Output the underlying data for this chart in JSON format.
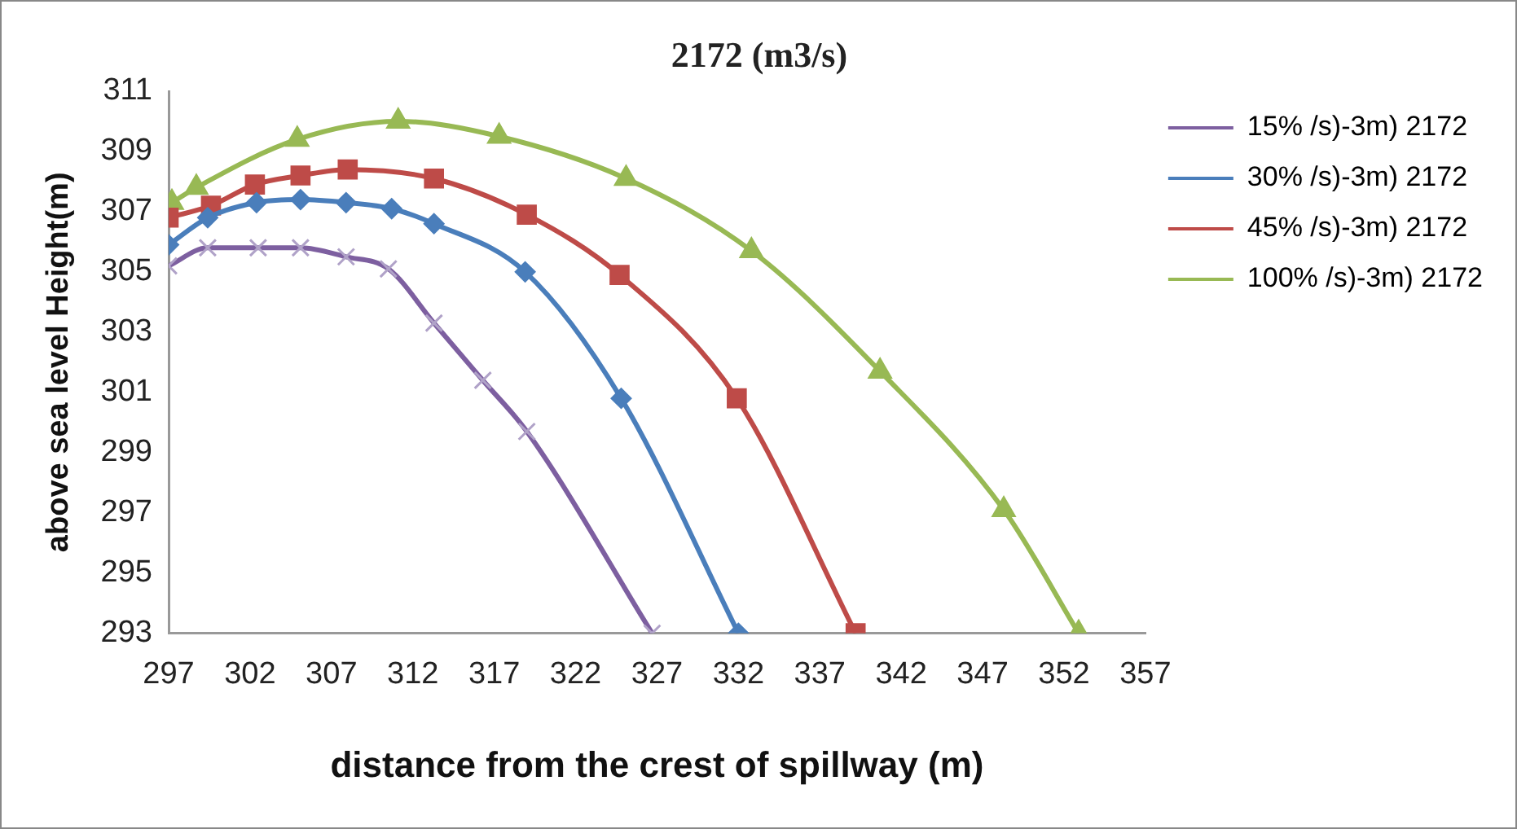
{
  "chart_data": {
    "type": "line",
    "title": "2172   (m3/s)",
    "xlabel": "distance from the crest of spillway (m)",
    "ylabel": "above sea level Height(m)",
    "xlim": [
      297,
      357
    ],
    "xticks": [
      297,
      302,
      307,
      312,
      317,
      322,
      327,
      332,
      337,
      342,
      347,
      352,
      357
    ],
    "ylim": [
      293,
      311
    ],
    "yticks": [
      293,
      295,
      297,
      299,
      301,
      303,
      305,
      307,
      309,
      311
    ],
    "grid": false,
    "legend": "top right",
    "series": [
      {
        "name": "15% /s)-3m) 2172",
        "color": "#7d5fa0",
        "marker": "cross",
        "x": [
          297.0,
          299.4,
          302.5,
          305.1,
          307.9,
          310.5,
          313.3,
          316.3,
          319.0,
          326.7
        ],
        "values": [
          305.2,
          305.8,
          305.8,
          305.8,
          305.5,
          305.1,
          303.3,
          301.4,
          299.7,
          293
        ]
      },
      {
        "name": "30% /s)-3m) 2172",
        "color": "#4a7ebb",
        "marker": "diamond",
        "x": [
          297.0,
          299.4,
          302.4,
          305.1,
          307.9,
          310.7,
          313.3,
          318.9,
          324.8,
          332.0
        ],
        "values": [
          305.9,
          306.8,
          307.3,
          307.4,
          307.3,
          307.1,
          306.6,
          305.0,
          300.8,
          293
        ]
      },
      {
        "name": "45% /s)-3m) 2172",
        "color": "#be4b48",
        "marker": "square",
        "x": [
          297.0,
          299.6,
          302.3,
          305.1,
          308.0,
          313.3,
          319.0,
          324.7,
          331.9,
          339.2
        ],
        "values": [
          306.8,
          307.2,
          307.9,
          308.2,
          308.4,
          308.1,
          306.9,
          304.9,
          300.8,
          293
        ]
      },
      {
        "name": "100% /s)-3m) 2172",
        "color": "#98b954",
        "marker": "triangle",
        "x": [
          297.2,
          298.7,
          304.9,
          311.1,
          317.3,
          325.1,
          332.8,
          340.7,
          348.3,
          352.9
        ],
        "values": [
          307.3,
          307.8,
          309.4,
          310.0,
          309.5,
          308.1,
          305.7,
          301.7,
          297.1,
          293
        ]
      }
    ]
  }
}
